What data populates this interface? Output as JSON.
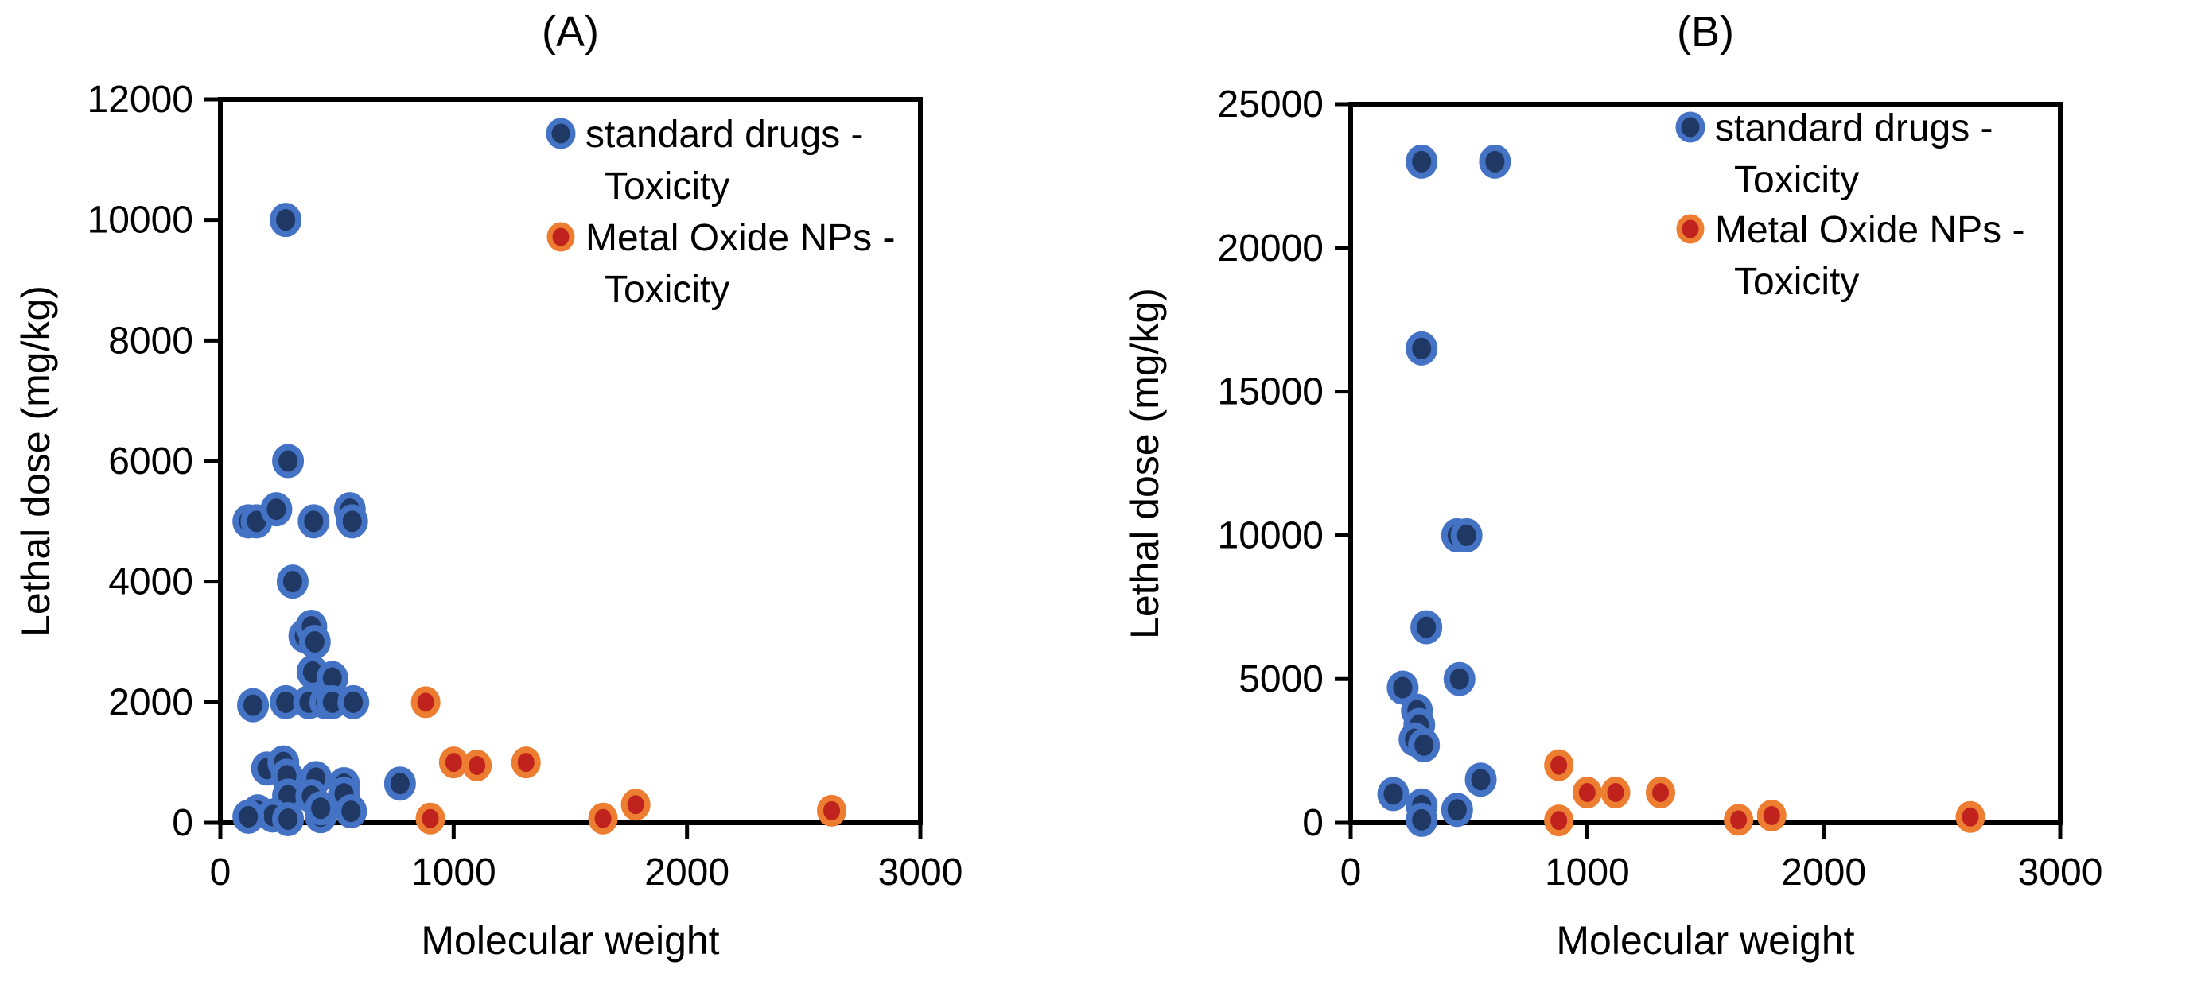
{
  "page": {
    "background": "#ffffff",
    "axis_color": "#000000"
  },
  "chart_data": [
    {
      "type": "scatter",
      "panel_label": "(A)",
      "xlabel": "Molecular weight",
      "ylabel": "Lethal dose (mg/kg)",
      "xlim": [
        0,
        3000
      ],
      "ylim": [
        0,
        12000
      ],
      "x_ticks": [
        0,
        1000,
        2000,
        3000
      ],
      "y_ticks": [
        0,
        2000,
        4000,
        6000,
        8000,
        10000,
        12000
      ],
      "grid": false,
      "legend_position": "top-right-inside",
      "series": [
        {
          "name": "standard drugs - Toxicity",
          "legend_lines": [
            "standard drugs -",
            "Toxicity"
          ],
          "marker": {
            "fill": "#1f3864",
            "stroke": "#4472c4"
          },
          "points": [
            [
              280,
              10000
            ],
            [
              290,
              6000
            ],
            [
              120,
              5000
            ],
            [
              155,
              5000
            ],
            [
              240,
              5200
            ],
            [
              400,
              5000
            ],
            [
              555,
              5200
            ],
            [
              565,
              5000
            ],
            [
              310,
              4000
            ],
            [
              360,
              3100
            ],
            [
              390,
              3250
            ],
            [
              405,
              3000
            ],
            [
              395,
              2500
            ],
            [
              480,
              2400
            ],
            [
              140,
              1950
            ],
            [
              280,
              2000
            ],
            [
              380,
              2000
            ],
            [
              450,
              2000
            ],
            [
              480,
              2000
            ],
            [
              570,
              2000
            ],
            [
              200,
              900
            ],
            [
              270,
              1000
            ],
            [
              285,
              780
            ],
            [
              410,
              740
            ],
            [
              530,
              640
            ],
            [
              770,
              650
            ],
            [
              290,
              450
            ],
            [
              390,
              440
            ],
            [
              530,
              480
            ],
            [
              160,
              190
            ],
            [
              225,
              120
            ],
            [
              120,
              100
            ],
            [
              290,
              60
            ],
            [
              430,
              110
            ],
            [
              430,
              240
            ],
            [
              560,
              190
            ]
          ]
        },
        {
          "name": "Metal Oxide NPs - Toxicity",
          "legend_lines": [
            "Metal Oxide NPs -",
            "Toxicity"
          ],
          "marker": {
            "fill": "#c0231e",
            "stroke": "#ed7d31"
          },
          "points": [
            [
              880,
              2000
            ],
            [
              1000,
              1000
            ],
            [
              1100,
              950
            ],
            [
              1310,
              1000
            ],
            [
              900,
              70
            ],
            [
              1640,
              70
            ],
            [
              1780,
              300
            ],
            [
              2620,
              200
            ]
          ]
        }
      ]
    },
    {
      "type": "scatter",
      "panel_label": "(B)",
      "xlabel": "Molecular weight",
      "ylabel": "Lethal dose (mg/kg)",
      "xlim": [
        0,
        3000
      ],
      "ylim": [
        0,
        25000
      ],
      "x_ticks": [
        0,
        1000,
        2000,
        3000
      ],
      "y_ticks": [
        0,
        5000,
        10000,
        15000,
        20000,
        25000
      ],
      "grid": false,
      "legend_position": "top-right-inside",
      "series": [
        {
          "name": "standard drugs - Toxicity",
          "legend_lines": [
            "standard drugs -",
            "Toxicity"
          ],
          "marker": {
            "fill": "#1f3864",
            "stroke": "#4472c4"
          },
          "points": [
            [
              300,
              23000
            ],
            [
              610,
              23000
            ],
            [
              300,
              16500
            ],
            [
              450,
              10000
            ],
            [
              490,
              10000
            ],
            [
              320,
              6800
            ],
            [
              460,
              5000
            ],
            [
              220,
              4700
            ],
            [
              280,
              3900
            ],
            [
              290,
              3400
            ],
            [
              270,
              2900
            ],
            [
              310,
              2700
            ],
            [
              550,
              1500
            ],
            [
              180,
              1000
            ],
            [
              300,
              600
            ],
            [
              450,
              450
            ],
            [
              300,
              100
            ]
          ]
        },
        {
          "name": "Metal Oxide NPs - Toxicity",
          "legend_lines": [
            "Metal Oxide NPs -",
            "Toxicity"
          ],
          "marker": {
            "fill": "#c0231e",
            "stroke": "#ed7d31"
          },
          "points": [
            [
              880,
              2000
            ],
            [
              1000,
              1050
            ],
            [
              1120,
              1050
            ],
            [
              1310,
              1050
            ],
            [
              880,
              80
            ],
            [
              1640,
              100
            ],
            [
              1780,
              250
            ],
            [
              2620,
              200
            ]
          ]
        }
      ]
    }
  ]
}
